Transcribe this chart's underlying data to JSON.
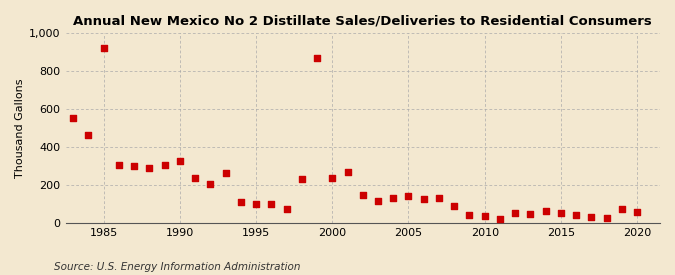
{
  "title": "Annual New Mexico No 2 Distillate Sales/Deliveries to Residential Consumers",
  "ylabel": "Thousand Gallons",
  "source": "Source: U.S. Energy Information Administration",
  "background_color": "#f3e8d0",
  "plot_background_color": "#f3e8d0",
  "marker_color": "#cc0000",
  "marker_size": 4,
  "years": [
    1983,
    1984,
    1985,
    1986,
    1987,
    1988,
    1989,
    1990,
    1991,
    1992,
    1993,
    1994,
    1995,
    1996,
    1997,
    1998,
    1999,
    2000,
    2001,
    2002,
    2003,
    2004,
    2005,
    2006,
    2007,
    2008,
    2009,
    2010,
    2011,
    2012,
    2013,
    2014,
    2015,
    2016,
    2017,
    2018,
    2019,
    2020
  ],
  "values": [
    555,
    463,
    925,
    305,
    300,
    290,
    305,
    330,
    240,
    205,
    265,
    110,
    100,
    100,
    75,
    235,
    870,
    240,
    270,
    150,
    115,
    130,
    145,
    125,
    130,
    88,
    45,
    40,
    20,
    55,
    50,
    65,
    55,
    45,
    30,
    25,
    75,
    60
  ],
  "ylim": [
    0,
    1000
  ],
  "yticks": [
    0,
    200,
    400,
    600,
    800,
    1000
  ],
  "ytick_labels": [
    "0",
    "200",
    "400",
    "600",
    "800",
    "1,000"
  ],
  "xlim": [
    1982.5,
    2021.5
  ],
  "xticks": [
    1985,
    1990,
    1995,
    2000,
    2005,
    2010,
    2015,
    2020
  ],
  "grid_color": "#aaaaaa",
  "title_fontsize": 9.5,
  "axis_fontsize": 8,
  "source_fontsize": 7.5
}
